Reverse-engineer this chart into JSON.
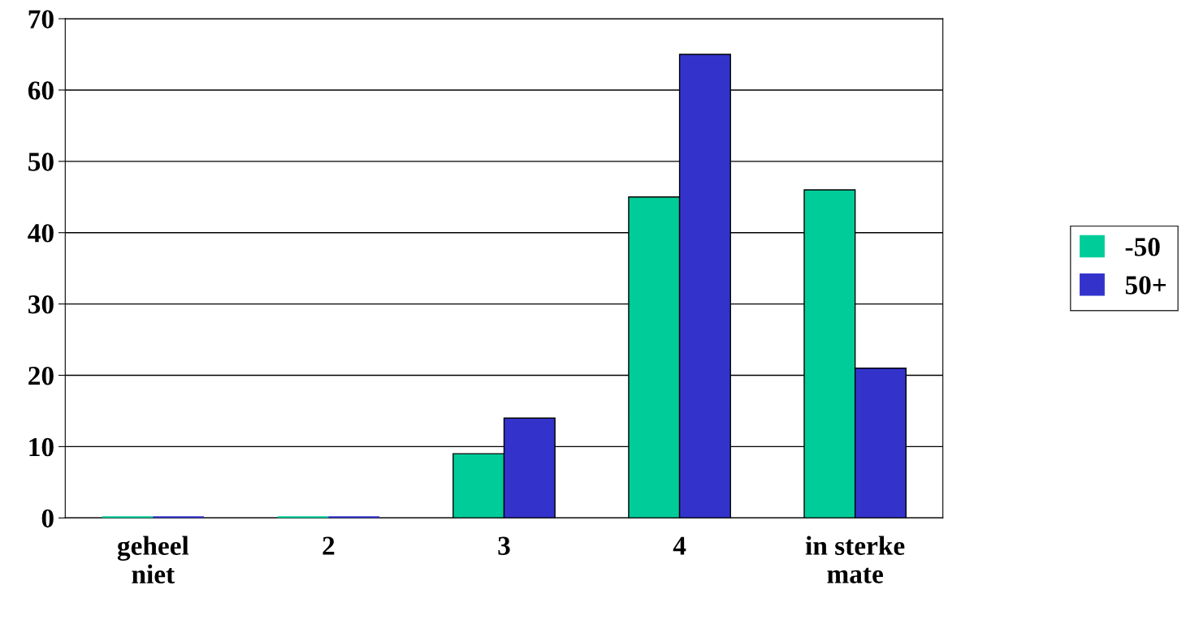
{
  "chart_data": {
    "type": "bar",
    "categories": [
      "geheel\nniet",
      "2",
      "3",
      "4",
      "in sterke\nmate"
    ],
    "series": [
      {
        "name": "-50",
        "color": "#00cc99",
        "values": [
          0,
          0,
          9,
          45,
          46
        ]
      },
      {
        "name": "50+",
        "color": "#3333cc",
        "values": [
          0,
          0,
          14,
          65,
          21
        ]
      }
    ],
    "ylim": [
      0,
      70
    ],
    "yticks": [
      0,
      10,
      20,
      30,
      40,
      50,
      60,
      70
    ],
    "grid": "y",
    "legend": "right"
  }
}
